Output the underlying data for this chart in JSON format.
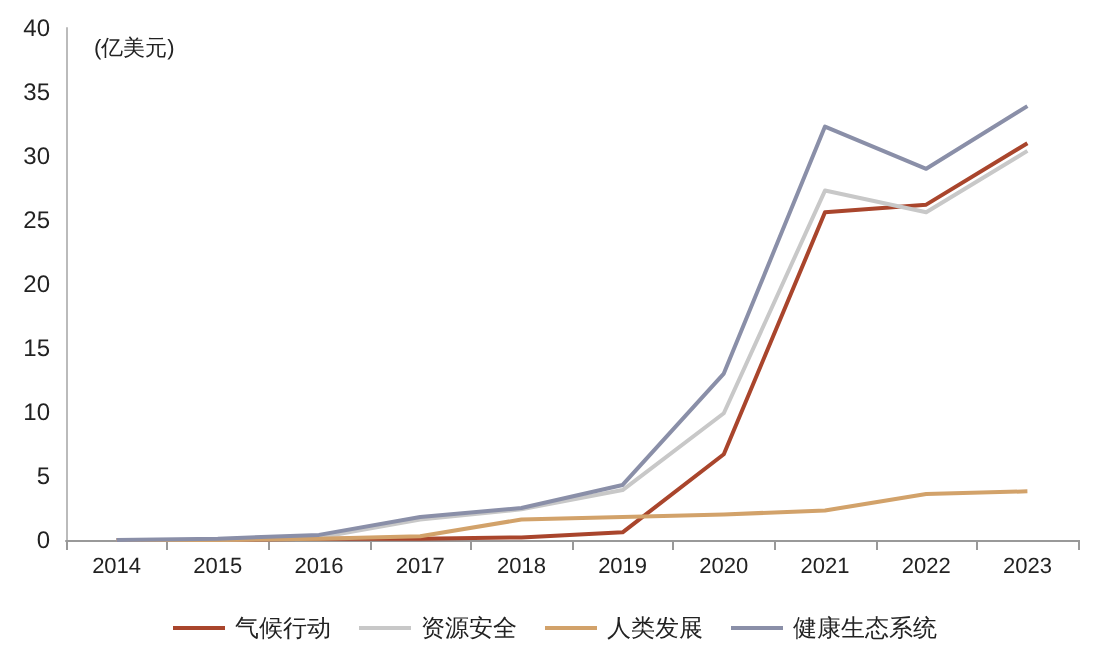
{
  "chart_data": {
    "type": "line",
    "ylabel": "(亿美元)",
    "categories": [
      "2014",
      "2015",
      "2016",
      "2017",
      "2018",
      "2019",
      "2020",
      "2021",
      "2022",
      "2023"
    ],
    "series": [
      {
        "name": "气候行动",
        "color": "#a9452c",
        "values": [
          0,
          0,
          0.1,
          0.1,
          0.2,
          0.6,
          6.7,
          25.6,
          26.2,
          31
        ]
      },
      {
        "name": "资源安全",
        "color": "#c8c8c8",
        "values": [
          0,
          0,
          0.2,
          1.6,
          2.4,
          3.9,
          9.9,
          27.3,
          25.6,
          30.4
        ]
      },
      {
        "name": "人类发展",
        "color": "#d2a26a",
        "values": [
          0,
          0,
          0.1,
          0.3,
          1.6,
          1.8,
          2.0,
          2.3,
          3.6,
          3.8
        ]
      },
      {
        "name": "健康生态系统",
        "color": "#8a8fa8",
        "values": [
          0,
          0.1,
          0.4,
          1.8,
          2.5,
          4.3,
          13,
          32.3,
          29,
          33.9
        ]
      }
    ],
    "ylim": [
      0,
      40
    ],
    "yticks": [
      0,
      5,
      10,
      15,
      20,
      25,
      30,
      35,
      40
    ],
    "grid": false,
    "legend": "bottom",
    "marker": "none",
    "line_style": "solid"
  }
}
